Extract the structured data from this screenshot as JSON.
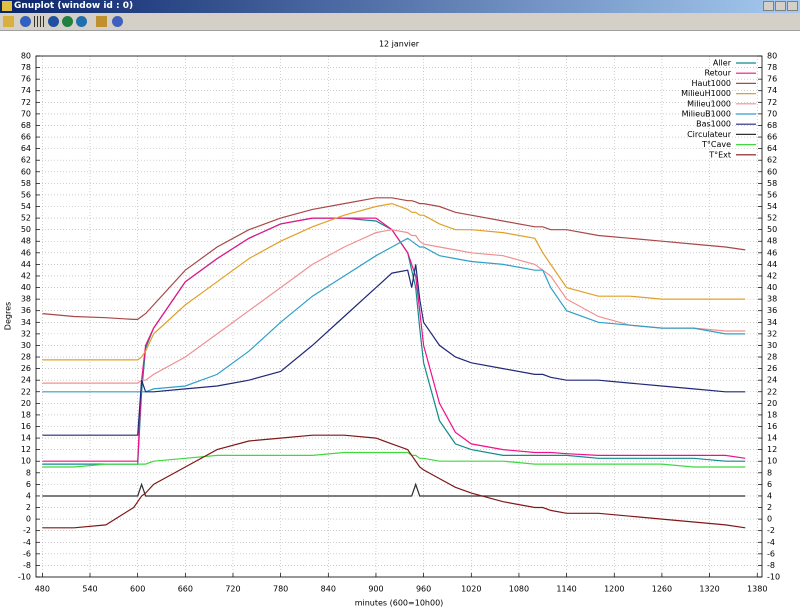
{
  "window": {
    "title": "Gnuplot (window id : 0)"
  },
  "chart_data": {
    "type": "line",
    "title": "12 janvier",
    "ylabel": "Degres",
    "xlabel": "minutes (600=10h00)",
    "x": [
      480,
      520,
      560,
      595,
      600,
      605,
      610,
      620,
      660,
      700,
      740,
      780,
      820,
      860,
      900,
      920,
      940,
      945,
      950,
      955,
      960,
      980,
      1000,
      1020,
      1060,
      1100,
      1110,
      1120,
      1140,
      1180,
      1220,
      1260,
      1300,
      1340,
      1365
    ],
    "xlim": [
      472,
      1386
    ],
    "xticks": [
      480,
      540,
      600,
      660,
      720,
      780,
      840,
      900,
      960,
      1020,
      1080,
      1140,
      1200,
      1260,
      1320,
      1380
    ],
    "ylim": [
      -10,
      80
    ],
    "yticks": [
      -10,
      -8,
      -6,
      -4,
      -2,
      0,
      2,
      4,
      6,
      8,
      10,
      12,
      14,
      16,
      18,
      20,
      22,
      24,
      26,
      28,
      30,
      32,
      34,
      36,
      38,
      40,
      42,
      44,
      46,
      48,
      50,
      52,
      54,
      56,
      58,
      60,
      62,
      64,
      66,
      68,
      70,
      72,
      74,
      76,
      78,
      80
    ],
    "y2lim": [
      -10,
      80
    ],
    "y2ticks": [
      -10,
      -8,
      -6,
      -4,
      -2,
      0,
      2,
      4,
      6,
      8,
      10,
      12,
      14,
      16,
      18,
      20,
      22,
      24,
      26,
      28,
      30,
      32,
      34,
      36,
      38,
      40,
      42,
      44,
      46,
      48,
      50,
      52,
      54,
      56,
      58,
      60,
      62,
      64,
      66,
      68,
      70,
      72,
      74,
      76,
      78,
      80
    ],
    "grid": true,
    "legend": "top-right",
    "series": [
      {
        "name": "Aller",
        "color": "#108a8a",
        "values": [
          9.5,
          9.5,
          9.5,
          9.5,
          9.5,
          22,
          29.5,
          33,
          41,
          45,
          48.5,
          51,
          52,
          52,
          51.5,
          50,
          46,
          43,
          40,
          33,
          27,
          17,
          13,
          12,
          11,
          11,
          11,
          11,
          11,
          10.5,
          10.5,
          10.5,
          10.5,
          10,
          10
        ]
      },
      {
        "name": "Retour",
        "color": "#f0108c",
        "values": [
          10,
          10,
          10,
          10,
          10,
          24,
          30,
          33,
          41,
          45,
          48.5,
          51,
          52,
          52,
          52,
          50,
          46,
          44,
          42,
          36,
          30,
          20,
          15,
          13,
          12,
          11.5,
          11.5,
          11.5,
          11.3,
          11,
          11,
          11,
          11,
          11,
          10.5
        ]
      },
      {
        "name": "Haut1000",
        "color": "#a84848",
        "values": [
          35.5,
          35,
          34.8,
          34.5,
          34.5,
          35,
          35.5,
          37,
          43,
          47,
          50,
          52,
          53.5,
          54.5,
          55.5,
          55.5,
          55,
          55,
          54.8,
          54.5,
          54.5,
          54,
          53,
          52.5,
          51.5,
          50.5,
          50.5,
          50,
          50,
          49,
          48.5,
          48,
          47.5,
          47,
          46.5
        ]
      },
      {
        "name": "MilieuH1000",
        "color": "#e0a028",
        "values": [
          27.5,
          27.5,
          27.5,
          27.5,
          27.5,
          28,
          29,
          32,
          37,
          41,
          45,
          48,
          50.5,
          52.5,
          54,
          54.5,
          53.5,
          53,
          53,
          52.5,
          52.5,
          51,
          50,
          50,
          49.5,
          48.5,
          46,
          44,
          40,
          38.5,
          38.5,
          38,
          38,
          38,
          38
        ]
      },
      {
        "name": "Milieu1000",
        "color": "#f09090",
        "values": [
          23.5,
          23.5,
          23.5,
          23.5,
          23.5,
          24,
          24,
          25,
          28,
          32,
          36,
          40,
          44,
          47,
          49.5,
          50,
          49.5,
          49,
          49,
          48,
          47.5,
          47,
          46.5,
          46,
          45.5,
          44,
          43,
          42,
          38,
          35,
          33.5,
          33,
          33,
          32.5,
          32.5
        ]
      },
      {
        "name": "MilieuB1000",
        "color": "#30a0c8",
        "values": [
          22,
          22,
          22,
          22,
          22,
          22,
          22,
          22.5,
          23,
          25,
          29,
          34,
          38.5,
          42,
          45.5,
          47,
          48.5,
          48,
          47.5,
          47,
          47,
          45.5,
          45,
          44.5,
          44,
          43,
          43,
          40,
          36,
          34,
          33.5,
          33,
          33,
          32,
          32
        ]
      },
      {
        "name": "Bas1000",
        "color": "#202878",
        "values": [
          14.5,
          14.5,
          14.5,
          14.5,
          14.5,
          24,
          22,
          22,
          22.5,
          23,
          24,
          25.5,
          30,
          35,
          40,
          42.5,
          43,
          40,
          44,
          38,
          34,
          30,
          28,
          27,
          26,
          25,
          25,
          24.5,
          24,
          24,
          23.5,
          23,
          22.5,
          22,
          22
        ]
      },
      {
        "name": "Circulateur",
        "color": "#303030",
        "values": [
          4,
          4,
          4,
          4,
          4,
          6,
          4,
          4,
          4,
          4,
          4,
          4,
          4,
          4,
          4,
          4,
          4,
          4,
          6,
          4,
          4,
          4,
          4,
          4,
          4,
          4,
          4,
          4,
          4,
          4,
          4,
          4,
          4,
          4,
          4
        ]
      },
      {
        "name": "T°Cave",
        "color": "#40d840",
        "values": [
          9,
          9,
          9.5,
          9.5,
          9.5,
          9.5,
          9.5,
          10,
          10.5,
          11,
          11,
          11,
          11,
          11.5,
          11.5,
          11.5,
          11.5,
          11,
          11,
          10.5,
          10.5,
          10,
          10,
          10,
          10,
          9.5,
          9.5,
          9.5,
          9.5,
          9.5,
          9.5,
          9.5,
          9,
          9,
          9
        ]
      },
      {
        "name": "T°Ext",
        "color": "#801818",
        "values": [
          -1.5,
          -1.5,
          -1,
          2,
          3,
          4,
          4.5,
          6,
          9,
          12,
          13.5,
          14,
          14.5,
          14.5,
          14,
          13,
          12,
          11,
          10,
          9,
          8.5,
          7,
          5.5,
          4.5,
          3,
          2,
          2,
          1.5,
          1,
          1,
          0.5,
          0,
          -0.5,
          -1,
          -1.5
        ]
      }
    ]
  }
}
